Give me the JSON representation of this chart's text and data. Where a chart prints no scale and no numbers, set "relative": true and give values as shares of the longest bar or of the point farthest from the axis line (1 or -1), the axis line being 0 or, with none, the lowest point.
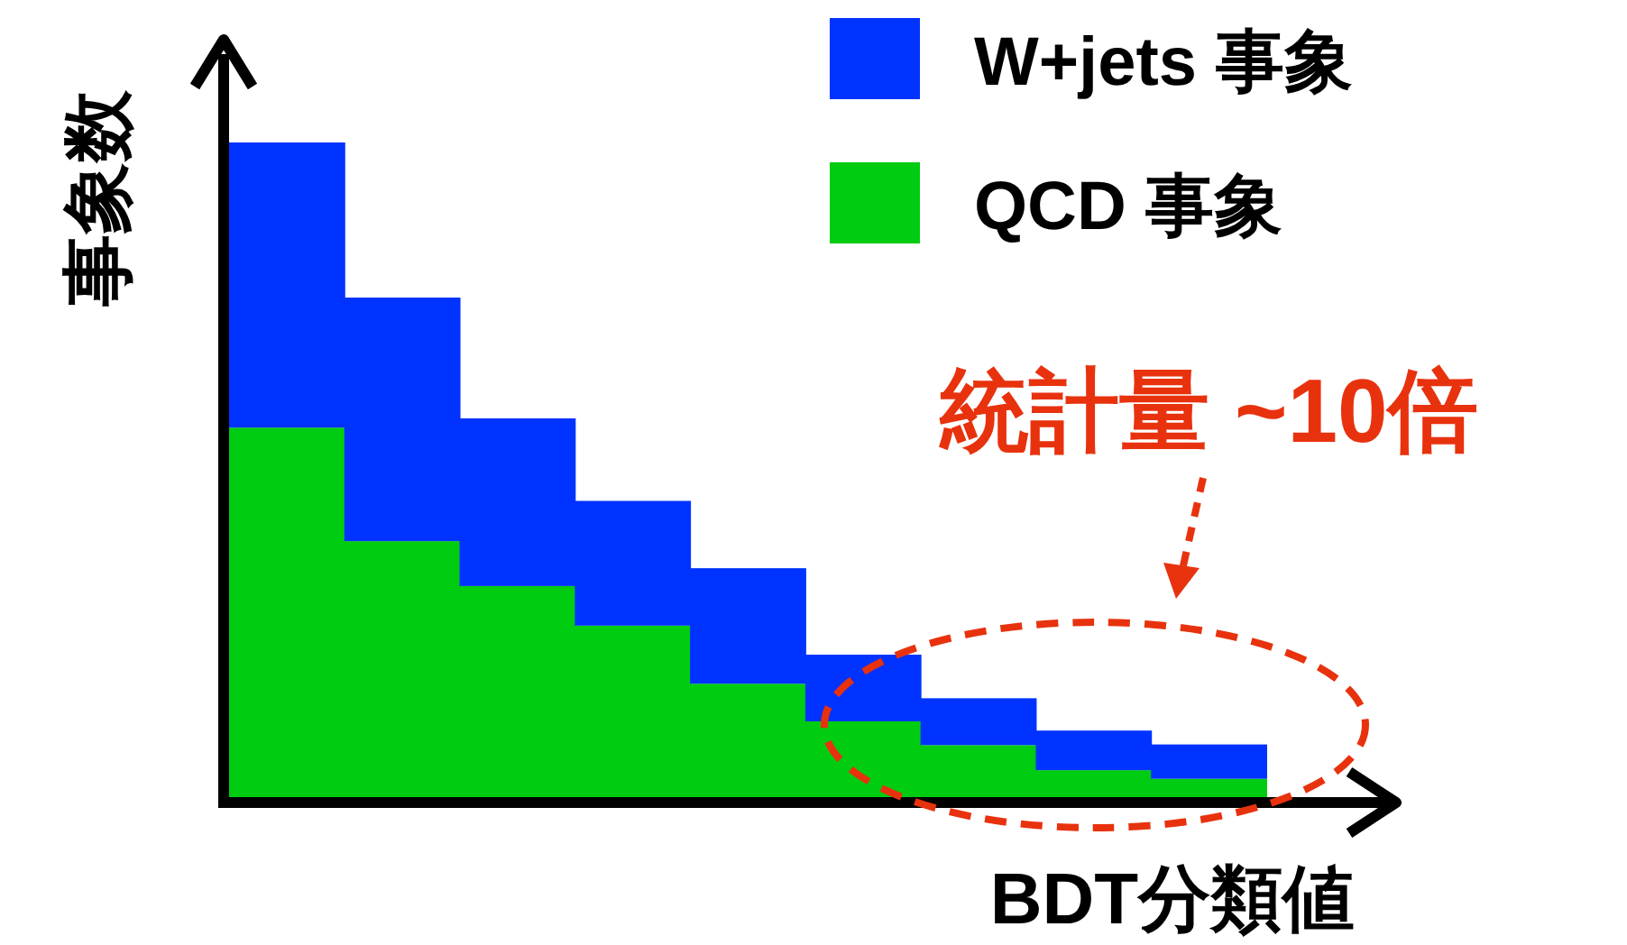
{
  "chart_data": {
    "type": "bar",
    "stacked": true,
    "relative": true,
    "legend": "top right",
    "xlabel": "BDT分類値",
    "ylabel": "事象数",
    "categories": [
      null,
      null,
      null,
      null,
      null,
      null,
      null,
      null,
      null
    ],
    "series": [
      {
        "name": "QCD 事象",
        "color": "#00cc11",
        "values": [
          0.568,
          0.396,
          0.328,
          0.268,
          0.18,
          0.123,
          0.087,
          0.049,
          0.036
        ]
      },
      {
        "name": "W+jets 事象",
        "color": "#0033ff",
        "values": [
          0.432,
          0.369,
          0.254,
          0.189,
          0.175,
          0.101,
          0.071,
          0.06,
          0.052
        ]
      }
    ],
    "annotations": [
      "統計量 ~10倍"
    ]
  }
}
